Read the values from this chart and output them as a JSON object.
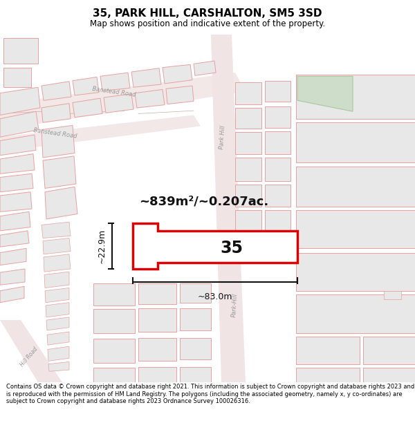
{
  "title": "35, PARK HILL, CARSHALTON, SM5 3SD",
  "subtitle": "Map shows position and indicative extent of the property.",
  "footer": "Contains OS data © Crown copyright and database right 2021. This information is subject to Crown copyright and database rights 2023 and is reproduced with the permission of HM Land Registry. The polygons (including the associated geometry, namely x, y co-ordinates) are subject to Crown copyright and database rights 2023 Ordnance Survey 100026316.",
  "area_label": "~839m²/~0.207ac.",
  "width_label": "~83.0m",
  "height_label": "~22.9m",
  "number_label": "35",
  "map_bg": "#f7f3f3",
  "plot_fill": "#ffffff",
  "plot_stroke": "#dd0000",
  "road_color": "#f0d8d8",
  "building_fill": "#e8e8e8",
  "building_stroke": "#e8a0a0",
  "green_fill": "#cdddc9",
  "dim_line_color": "#111111",
  "title_fontsize": 11,
  "subtitle_fontsize": 8.5
}
